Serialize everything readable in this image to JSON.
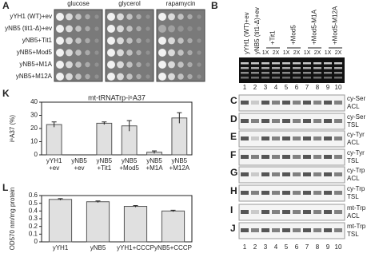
{
  "figure": {
    "A": {
      "label": "A",
      "media": [
        "glucose",
        "glycerol",
        "rapamycin"
      ],
      "strains": [
        "yYH1 (WT)+ev",
        "yNB5 (tit1-Δ)+ev",
        "yNB5+Tit1",
        "yNB5+Mod5",
        "yNB5+M1A",
        "yNB5+M12A"
      ]
    },
    "B": {
      "label": "B",
      "lanes": [
        "yYH1 (WT)+ev",
        "yNB5 (tit1-Δ)+ev",
        "+Tit1",
        "+Mod5",
        "+Mod5-M1A",
        "+Mod5-M12A"
      ],
      "dilutions": [
        "1X",
        "2X",
        "1X",
        "2X",
        "1X",
        "2X",
        "1X",
        "2X"
      ],
      "lane_numbers_top": [
        "1",
        "2",
        "3",
        "4",
        "5",
        "6",
        "7",
        "8",
        "9",
        "10"
      ],
      "lane_numbers_bottom": [
        "1",
        "2",
        "3",
        "4",
        "5",
        "6",
        "7",
        "8",
        "9",
        "10"
      ]
    },
    "blots": [
      {
        "label": "C",
        "probe": "cy-Ser",
        "region": "ACL"
      },
      {
        "label": "D",
        "probe": "cy-Ser",
        "region": "TSL"
      },
      {
        "label": "E",
        "probe": "cy-Tyr",
        "region": "ACL"
      },
      {
        "label": "F",
        "probe": "cy-Tyr",
        "region": "TSL"
      },
      {
        "label": "G",
        "probe": "cy-Trp",
        "region": "ACL"
      },
      {
        "label": "H",
        "probe": "cy-Trp",
        "region": "TSL"
      },
      {
        "label": "I",
        "probe": "mt-Trp",
        "region": "ACL"
      },
      {
        "label": "J",
        "probe": "mt-Trp",
        "region": "TSL"
      }
    ]
  },
  "chart_data": [
    {
      "type": "bar",
      "label": "K",
      "title": "mt-tRNATrp-i⁶A37",
      "y_label": "i⁶A37 (%)",
      "categories": [
        [
          "yYH1",
          "+ev"
        ],
        [
          "yNB5",
          "+ev"
        ],
        [
          "yNB5",
          "+Tit1"
        ],
        [
          "yNB5",
          "+Mod5"
        ],
        [
          "yNB5",
          "+M1A"
        ],
        [
          "yNB5",
          "+M12A"
        ]
      ],
      "values": [
        23,
        0,
        24,
        22,
        2,
        28
      ],
      "errors": [
        2,
        0,
        1,
        4,
        1,
        4
      ],
      "color": "#e0e0e0",
      "ylim": [
        0,
        40
      ],
      "yticks": [
        0,
        10,
        20,
        30,
        40
      ]
    },
    {
      "type": "bar",
      "label": "L",
      "y_label": "OD570 nm/mg protein",
      "categories": [
        [
          "yYH1"
        ],
        [
          "yNB5"
        ],
        [
          "yYH1+CCCP"
        ],
        [
          "yNB5+CCCP"
        ]
      ],
      "values": [
        0.55,
        0.52,
        0.46,
        0.4
      ],
      "errors": [
        0.01,
        0.01,
        0.01,
        0.01
      ],
      "color": "#e0e0e0",
      "ylim": [
        0,
        0.6
      ],
      "yticks": [
        0,
        0.1,
        0.2,
        0.3,
        0.4,
        0.5,
        0.6
      ]
    }
  ]
}
